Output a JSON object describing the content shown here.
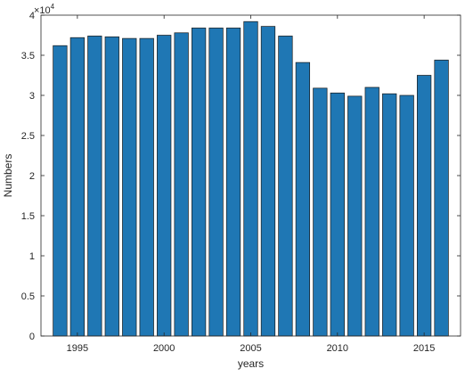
{
  "chart_data": {
    "type": "bar",
    "title": "",
    "xlabel": "years",
    "ylabel": "Numbers",
    "y_multiplier": {
      "base": "×10",
      "exponent": "4"
    },
    "x": [
      1994,
      1995,
      1996,
      1997,
      1998,
      1999,
      2000,
      2001,
      2002,
      2003,
      2004,
      2005,
      2006,
      2007,
      2008,
      2009,
      2010,
      2011,
      2012,
      2013,
      2014,
      2015,
      2016
    ],
    "values": [
      36200,
      37200,
      37400,
      37300,
      37100,
      37100,
      37500,
      37800,
      38400,
      38400,
      38400,
      39200,
      38600,
      37400,
      34100,
      30900,
      30300,
      29900,
      31000,
      30200,
      30000,
      32500,
      34400
    ],
    "xlim": [
      1992.9,
      2017.1
    ],
    "ylim": [
      0,
      40000
    ],
    "x_ticks": [
      1995,
      2000,
      2005,
      2010,
      2015
    ],
    "x_tick_labels": [
      "1995",
      "2000",
      "2005",
      "2010",
      "2015"
    ],
    "y_ticks": [
      0,
      5000,
      10000,
      15000,
      20000,
      25000,
      30000,
      35000,
      40000
    ],
    "y_tick_labels": [
      "0",
      "0.5",
      "1",
      "1.5",
      "2",
      "2.5",
      "3",
      "3.5",
      "4"
    ],
    "bar_color": "#1f77b4",
    "bar_edge_color": "#1a1a1a",
    "grid": false,
    "box": true
  }
}
